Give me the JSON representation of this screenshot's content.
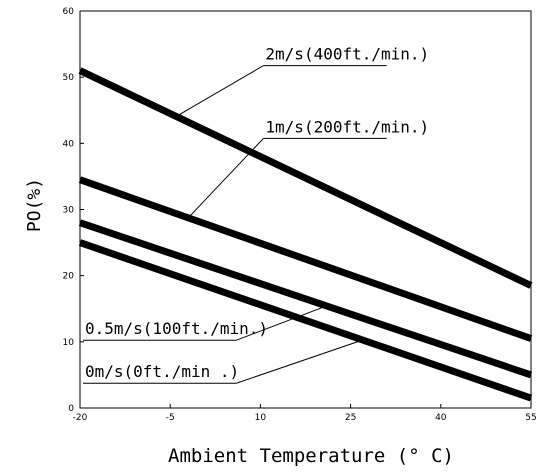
{
  "chart_data": {
    "type": "line",
    "xlabel": "Ambient Temperature (° C)",
    "ylabel": "PO(%)",
    "xlim": [
      -20,
      55
    ],
    "ylim": [
      0,
      60
    ],
    "xticks": [
      -20,
      -5,
      10,
      25,
      40,
      55
    ],
    "yticks": [
      0,
      10,
      20,
      30,
      40,
      50,
      60
    ],
    "x_tick_labels": [
      "-20",
      "-5",
      "10",
      "25",
      "40",
      "55"
    ],
    "y_tick_labels": [
      "0",
      "10",
      "20",
      "30",
      "40",
      "50",
      "60"
    ],
    "grid": false,
    "legend": "none",
    "series": [
      {
        "name": "2m/s(400ft./min.)",
        "x": [
          -20,
          55
        ],
        "y": [
          51,
          18.5
        ]
      },
      {
        "name": "1m/s(200ft./min.)",
        "x": [
          -20,
          55
        ],
        "y": [
          34.5,
          10.5
        ]
      },
      {
        "name": "0.5m/s(100ft./min.)",
        "x": [
          -20,
          55
        ],
        "y": [
          28,
          5
        ]
      },
      {
        "name": "0m/s(0ft./min .)",
        "x": [
          -20,
          55
        ],
        "y": [
          25,
          1.5
        ]
      }
    ],
    "annotations": [
      {
        "series": 0,
        "text": "2m/s(400ft./min.)",
        "anchor_x": -4,
        "text_x": 10.5,
        "text_y": 52.5,
        "leader_end_x": 31
      },
      {
        "series": 1,
        "text": "1m/s(200ft./min.)",
        "anchor_x": -2,
        "text_x": 10.5,
        "text_y": 41.5,
        "leader_end_x": 31
      },
      {
        "series": 2,
        "text": "0.5m/s(100ft./min.)",
        "anchor_x": 21,
        "text_x": -19.5,
        "text_y": 11,
        "leader_end_x": 6
      },
      {
        "series": 3,
        "text": "0m/s(0ft./min .)",
        "anchor_x": 27,
        "text_x": -19.5,
        "text_y": 4.5,
        "leader_end_x": 6
      }
    ]
  }
}
